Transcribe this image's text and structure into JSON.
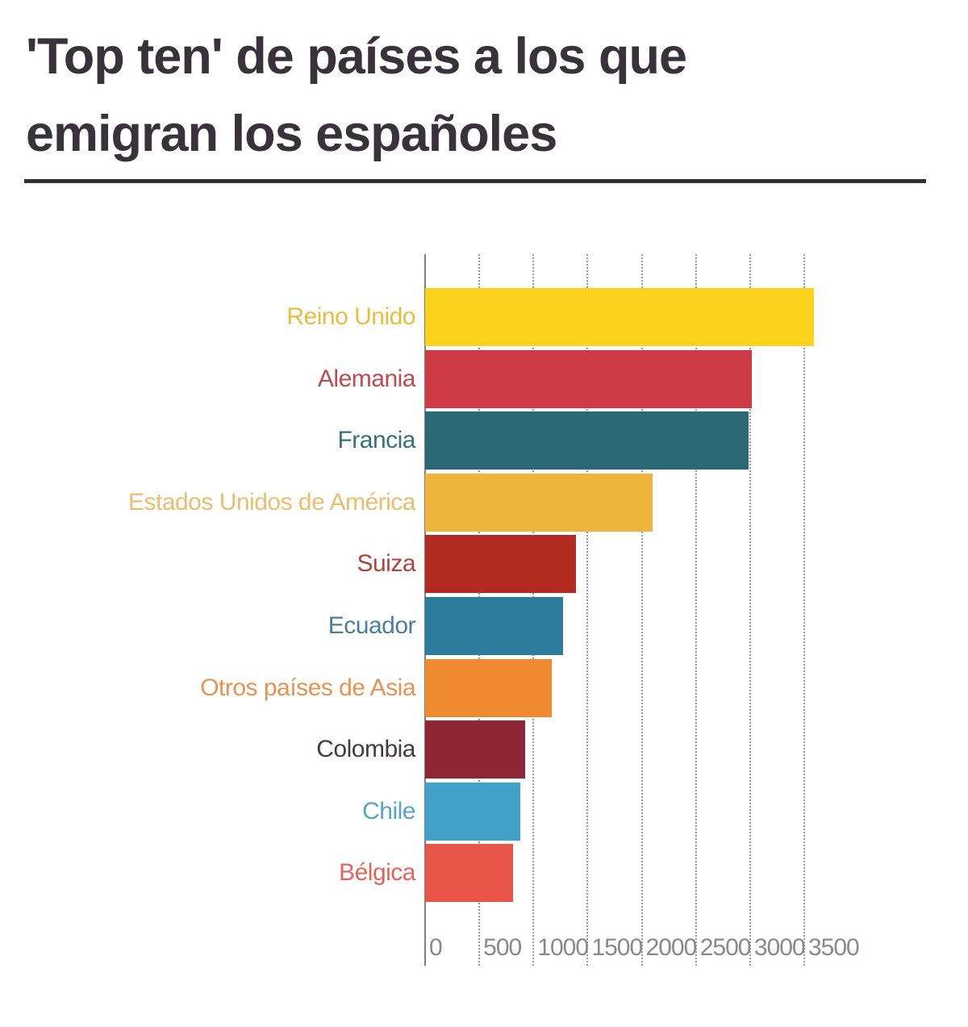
{
  "header": {
    "title_line1": "'Top ten' de países a los que",
    "title_line2": "emigran los españoles",
    "title_color": "#38333a"
  },
  "chart_data": {
    "type": "bar",
    "orientation": "horizontal",
    "title": "'Top ten' de países a los que emigran los españoles",
    "categories": [
      "Reino Unido",
      "Alemania",
      "Francia",
      "Estados Unidos de América",
      "Suiza",
      "Ecuador",
      "Otros países de Asia",
      "Colombia",
      "Chile",
      "Bélgica"
    ],
    "values": [
      3590,
      3015,
      2985,
      2100,
      1395,
      1270,
      1170,
      925,
      875,
      815
    ],
    "bar_colors": [
      "#fbd21c",
      "#cf3b44",
      "#2a6876",
      "#eeb43c",
      "#b32a21",
      "#2d7c9b",
      "#f08a31",
      "#8f2637",
      "#41a1c8",
      "#e85549"
    ],
    "label_colors": [
      "#e8be3e",
      "#c04a52",
      "#35707f",
      "#eabe70",
      "#af443b",
      "#4a7f9b",
      "#e89254",
      "#453a3d",
      "#57a5c7",
      "#e3635a"
    ],
    "x_ticks": [
      0,
      500,
      1000,
      1500,
      2000,
      2500,
      3000,
      3500
    ],
    "xlim": [
      0,
      3500
    ],
    "xlabel": "",
    "ylabel": "",
    "legend": "none",
    "grid": "vertical-dotted",
    "axis_color": "#7f7f7f",
    "grid_color": "#9c9c9c",
    "tick_label_color": "#8a8a8a"
  }
}
